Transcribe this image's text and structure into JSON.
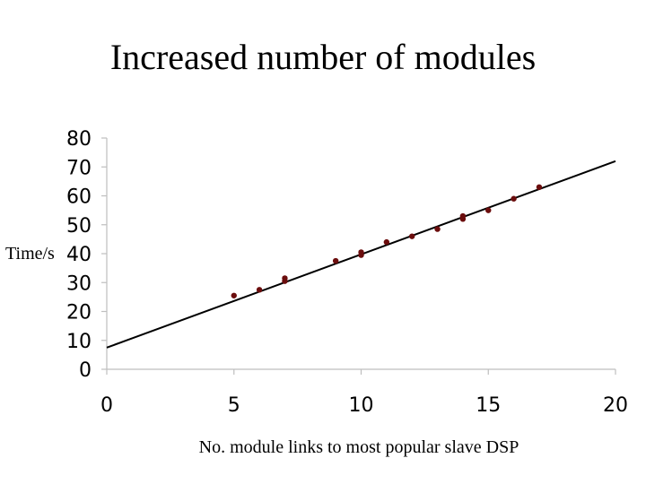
{
  "chart_data": {
    "type": "scatter",
    "title": "Increased number of modules",
    "xlabel": "No. module links to most popular slave DSP",
    "ylabel": "Time/s",
    "xlim": [
      0,
      20
    ],
    "ylim": [
      0,
      80
    ],
    "x_ticks": [
      0,
      5,
      10,
      15,
      20
    ],
    "y_ticks": [
      0,
      10,
      20,
      30,
      40,
      50,
      60,
      70,
      80
    ],
    "grid": false,
    "point_color": "#6b0d0d",
    "trendline": {
      "type": "linear",
      "x": [
        0,
        20
      ],
      "y": [
        7.5,
        72
      ]
    },
    "points": [
      {
        "x": 5,
        "y": 25.5
      },
      {
        "x": 6,
        "y": 27.5
      },
      {
        "x": 7,
        "y": 30.5
      },
      {
        "x": 7,
        "y": 31.5
      },
      {
        "x": 9,
        "y": 37.5
      },
      {
        "x": 10,
        "y": 39.5
      },
      {
        "x": 10,
        "y": 40.5
      },
      {
        "x": 11,
        "y": 44
      },
      {
        "x": 12,
        "y": 46
      },
      {
        "x": 13,
        "y": 48.5
      },
      {
        "x": 14,
        "y": 52
      },
      {
        "x": 14,
        "y": 53
      },
      {
        "x": 15,
        "y": 55
      },
      {
        "x": 16,
        "y": 59
      },
      {
        "x": 17,
        "y": 63
      }
    ]
  }
}
